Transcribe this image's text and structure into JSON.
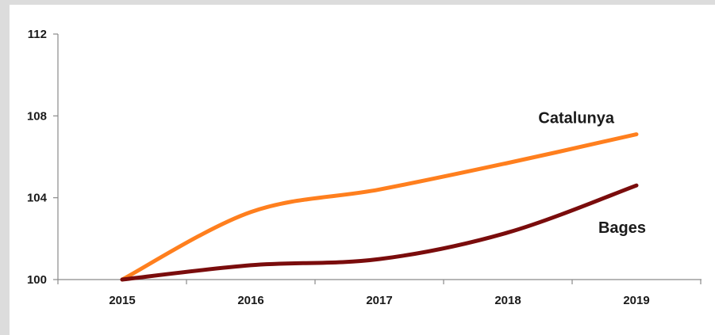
{
  "chart_data": {
    "type": "line",
    "title": "",
    "xlabel": "",
    "ylabel": "",
    "x": [
      "2015",
      "2016",
      "2017",
      "2018",
      "2019"
    ],
    "y_ticks": [
      "100",
      "104",
      "108",
      "112"
    ],
    "ylim": [
      100,
      112
    ],
    "grid": false,
    "legend": "none (series labelled directly on the lines)",
    "series": [
      {
        "name": "Catalunya",
        "color": "#ff7f1e",
        "values": [
          100,
          103.3,
          104.4,
          105.7,
          107.1
        ]
      },
      {
        "name": "Bages",
        "color": "#7a0c0c",
        "values": [
          100,
          100.7,
          101.0,
          102.3,
          104.6
        ]
      }
    ]
  }
}
